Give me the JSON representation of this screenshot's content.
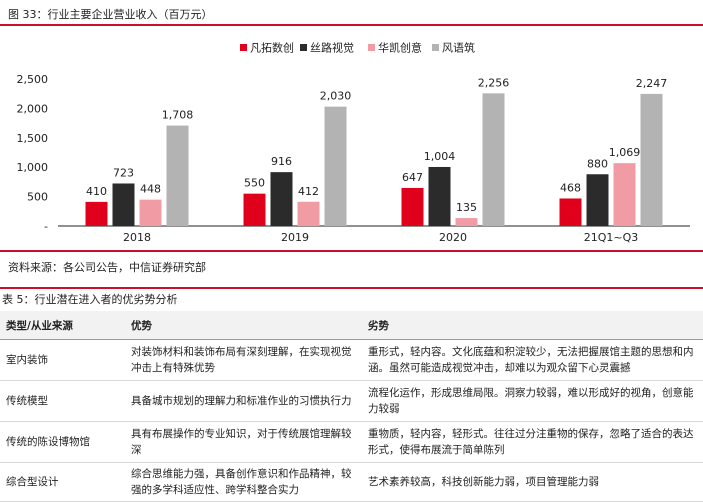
{
  "figure": {
    "title": "图 33：行业主要企业营业收入（百万元）",
    "source": "资料来源：各公司公告，中信证券研究部"
  },
  "chart_data": {
    "type": "bar",
    "categories": [
      "2018",
      "2019",
      "2020",
      "21Q1~Q3"
    ],
    "series": [
      {
        "name": "凡拓数创",
        "values": [
          410,
          550,
          647,
          468
        ],
        "color": "#e0001b"
      },
      {
        "name": "丝路视觉",
        "values": [
          723,
          916,
          1004,
          880
        ],
        "color": "#2b2b2b"
      },
      {
        "name": "华凯创意",
        "values": [
          448,
          412,
          135,
          1069
        ],
        "color": "#f19ca4"
      },
      {
        "name": "风语筑",
        "values": [
          1708,
          2030,
          2256,
          2247
        ],
        "color": "#b3b3b3"
      }
    ],
    "data_labels": [
      [
        "410",
        "550",
        "647",
        "468"
      ],
      [
        "723",
        "916",
        "1,004",
        "880"
      ],
      [
        "448",
        "412",
        "135",
        "1,069"
      ],
      [
        "1,708",
        "2,030",
        "2,256",
        "2,247"
      ]
    ],
    "yticks": [
      "-",
      "500",
      "1,000",
      "1,500",
      "2,000",
      "2,500"
    ],
    "ytick_values": [
      0,
      500,
      1000,
      1500,
      2000,
      2500
    ],
    "ylim": [
      0,
      2500
    ],
    "legend_position": "top-center",
    "grid": false
  },
  "table": {
    "title": "表 5：行业潜在进入者的优劣势分析",
    "headers": [
      "类型/从业来源",
      "优势",
      "劣势"
    ],
    "rows": [
      [
        "室内装饰",
        "对装饰材料和装饰布局有深刻理解，在实现视觉冲击上有特殊优势",
        "重形式，轻内容。文化底蕴和积淀较少，无法把握展馆主题的思想和内涵。虽然可能造成视觉冲击，却难以为观众留下心灵震撼"
      ],
      [
        "传统模型",
        "具备城市规划的理解力和标准作业的习惯执行力",
        "流程化运作，形成思维局限。洞察力较弱，难以形成好的视角，创意能力较弱"
      ],
      [
        "传统的陈设博物馆",
        "具有布展操作的专业知识，对于传统展馆理解较深",
        "重物质，轻内容，轻形式。往往过分注重物的保存，忽略了适合的表达形式，使得布展流于简单陈列"
      ],
      [
        "综合型设计",
        "综合思维能力强，具备创作意识和作品精神，较强的多学科适应性、跨学科整合实力",
        "艺术素养较高，科技创新能力弱，项目管理能力弱"
      ]
    ]
  }
}
